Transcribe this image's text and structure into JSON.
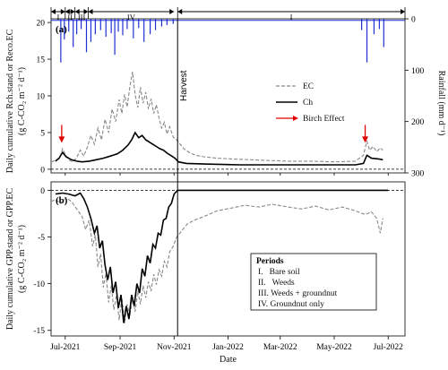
{
  "chart_data": [
    {
      "panel": "(a)",
      "type": "line",
      "ylabel_left": "Daily cumulative Rch.stand or Reco.EC",
      "ylabel_units": "(g C-CO₂ m⁻² d⁻¹)",
      "ylabel_right": "Rainfall (mm d⁻¹)",
      "ylim": [
        -0.5,
        20.5
      ],
      "yticks": [
        0,
        5,
        10,
        15,
        20
      ],
      "y2lim": [
        300,
        0
      ],
      "y2ticks": [
        0,
        100,
        200,
        300
      ],
      "xlim": [
        "2021-06-15",
        "2022-07-20"
      ],
      "annotation_harvest": "Harvest",
      "annotation_harvest_date": "2021-11-05",
      "periods": [
        {
          "label": "I",
          "start": "2021-06-15",
          "end": "2021-07-01"
        },
        {
          "label": "II",
          "start": "2021-07-01",
          "end": "2021-07-12"
        },
        {
          "label": "III",
          "start": "2021-07-12",
          "end": "2021-07-27"
        },
        {
          "label": "IV",
          "start": "2021-07-27",
          "end": "2021-11-01"
        },
        {
          "label": "I",
          "start": "2021-11-05",
          "end": "2022-07-20"
        }
      ],
      "birch_arrows": [
        "2021-06-27",
        "2022-06-05"
      ],
      "legend": {
        "ec": "EC",
        "ch": "Ch",
        "birch": "Birch Effect"
      },
      "series": [
        {
          "name": "EC",
          "style": "dashed",
          "color": "#888888",
          "points": [
            [
              "2021-06-15",
              1.0
            ],
            [
              "2021-06-20",
              1.2
            ],
            [
              "2021-06-25",
              1.6
            ],
            [
              "2021-06-28",
              2.8
            ],
            [
              "2021-07-02",
              1.8
            ],
            [
              "2021-07-06",
              1.2
            ],
            [
              "2021-07-10",
              1.0
            ],
            [
              "2021-07-14",
              1.6
            ],
            [
              "2021-07-18",
              2.6
            ],
            [
              "2021-07-22",
              1.8
            ],
            [
              "2021-07-26",
              3.0
            ],
            [
              "2021-07-30",
              4.6
            ],
            [
              "2021-08-03",
              3.4
            ],
            [
              "2021-08-07",
              5.6
            ],
            [
              "2021-08-11",
              4.0
            ],
            [
              "2021-08-15",
              6.8
            ],
            [
              "2021-08-19",
              5.0
            ],
            [
              "2021-08-23",
              8.2
            ],
            [
              "2021-08-27",
              6.5
            ],
            [
              "2021-08-31",
              9.5
            ],
            [
              "2021-09-03",
              7.6
            ],
            [
              "2021-09-06",
              10.2
            ],
            [
              "2021-09-09",
              8.5
            ],
            [
              "2021-09-12",
              11.2
            ],
            [
              "2021-09-15",
              13.3
            ],
            [
              "2021-09-18",
              10.2
            ],
            [
              "2021-09-21",
              8.4
            ],
            [
              "2021-09-24",
              11.2
            ],
            [
              "2021-09-27",
              9.0
            ],
            [
              "2021-09-30",
              10.5
            ],
            [
              "2021-10-03",
              8.2
            ],
            [
              "2021-10-06",
              9.6
            ],
            [
              "2021-10-09",
              7.6
            ],
            [
              "2021-10-12",
              8.8
            ],
            [
              "2021-10-15",
              7.0
            ],
            [
              "2021-10-18",
              5.6
            ],
            [
              "2021-10-21",
              6.4
            ],
            [
              "2021-10-24",
              4.8
            ],
            [
              "2021-10-27",
              5.8
            ],
            [
              "2021-10-31",
              4.4
            ],
            [
              "2021-11-04",
              4.0
            ],
            [
              "2021-11-08",
              3.4
            ],
            [
              "2021-11-12",
              2.8
            ],
            [
              "2021-11-18",
              2.3
            ],
            [
              "2021-11-25",
              1.9
            ],
            [
              "2021-12-05",
              1.7
            ],
            [
              "2021-12-20",
              1.5
            ],
            [
              "2022-01-05",
              1.4
            ],
            [
              "2022-01-25",
              1.3
            ],
            [
              "2022-02-15",
              1.2
            ],
            [
              "2022-03-10",
              1.1
            ],
            [
              "2022-04-05",
              1.1
            ],
            [
              "2022-05-01",
              1.0
            ],
            [
              "2022-05-25",
              1.1
            ],
            [
              "2022-06-03",
              1.9
            ],
            [
              "2022-06-07",
              3.8
            ],
            [
              "2022-06-10",
              2.6
            ],
            [
              "2022-06-14",
              3.1
            ],
            [
              "2022-06-18",
              2.4
            ],
            [
              "2022-06-22",
              2.9
            ],
            [
              "2022-06-25",
              2.6
            ]
          ]
        },
        {
          "name": "Ch",
          "style": "solid",
          "color": "#000000",
          "points": [
            [
              "2021-06-20",
              1.1
            ],
            [
              "2021-06-24",
              1.5
            ],
            [
              "2021-06-28",
              2.3
            ],
            [
              "2021-07-02",
              1.7
            ],
            [
              "2021-07-08",
              1.3
            ],
            [
              "2021-07-14",
              1.1
            ],
            [
              "2021-07-20",
              1.0
            ],
            [
              "2021-07-28",
              1.1
            ],
            [
              "2021-08-05",
              1.3
            ],
            [
              "2021-08-13",
              1.5
            ],
            [
              "2021-08-21",
              1.8
            ],
            [
              "2021-08-29",
              2.1
            ],
            [
              "2021-09-04",
              2.6
            ],
            [
              "2021-09-10",
              3.3
            ],
            [
              "2021-09-14",
              4.0
            ],
            [
              "2021-09-18",
              5.0
            ],
            [
              "2021-09-22",
              4.3
            ],
            [
              "2021-09-26",
              4.6
            ],
            [
              "2021-09-30",
              4.0
            ],
            [
              "2021-10-04",
              3.7
            ],
            [
              "2021-10-08",
              3.4
            ],
            [
              "2021-10-12",
              3.1
            ],
            [
              "2021-10-16",
              2.8
            ],
            [
              "2021-10-20",
              2.6
            ],
            [
              "2021-10-24",
              2.2
            ],
            [
              "2021-10-28",
              1.9
            ],
            [
              "2021-11-02",
              1.5
            ],
            [
              "2021-11-06",
              1.0
            ],
            [
              "2021-11-15",
              0.8
            ],
            [
              "2021-12-10",
              0.7
            ],
            [
              "2022-01-15",
              0.6
            ],
            [
              "2022-03-01",
              0.6
            ],
            [
              "2022-04-20",
              0.6
            ],
            [
              "2022-05-25",
              0.6
            ],
            [
              "2022-06-03",
              0.8
            ],
            [
              "2022-06-07",
              1.9
            ],
            [
              "2022-06-12",
              1.5
            ],
            [
              "2022-06-20",
              1.4
            ],
            [
              "2022-06-25",
              1.3
            ]
          ]
        }
      ]
    },
    {
      "panel": "(b)",
      "type": "line",
      "ylabel_left": "Daily cumulative GPP.stand or GPP.EC",
      "ylabel_units": "(g C-CO₂ m⁻² d⁻¹)",
      "ylim": [
        -15.6,
        0.9
      ],
      "yticks": [
        0,
        -5,
        -10,
        -15
      ],
      "xlabel": "Date",
      "xticks": [
        "Jul-2021",
        "Sep-2021",
        "Nov-2021",
        "Jan-2022",
        "Mar-2022",
        "May-2022",
        "Jul-2022"
      ],
      "xtick_dates": [
        "2021-07-01",
        "2021-09-01",
        "2021-11-01",
        "2022-01-01",
        "2022-03-01",
        "2022-05-01",
        "2022-07-01"
      ],
      "periods_box": {
        "title": "Periods",
        "items": [
          "I.   Bare soil",
          "II.   Weeds",
          "III. Weeds + groundnut",
          "IV. Groundnut only"
        ]
      },
      "series": [
        {
          "name": "EC",
          "style": "dashed",
          "color": "#888888",
          "points": [
            [
              "2021-06-15",
              -1.2
            ],
            [
              "2021-06-20",
              -1.0
            ],
            [
              "2021-06-26",
              -1.4
            ],
            [
              "2021-07-02",
              -0.8
            ],
            [
              "2021-07-08",
              -1.2
            ],
            [
              "2021-07-14",
              -2.0
            ],
            [
              "2021-07-20",
              -2.8
            ],
            [
              "2021-07-24",
              -4.2
            ],
            [
              "2021-07-28",
              -3.2
            ],
            [
              "2021-08-01",
              -6.0
            ],
            [
              "2021-08-04",
              -4.8
            ],
            [
              "2021-08-07",
              -8.2
            ],
            [
              "2021-08-10",
              -6.8
            ],
            [
              "2021-08-13",
              -10.4
            ],
            [
              "2021-08-16",
              -8.9
            ],
            [
              "2021-08-19",
              -12.0
            ],
            [
              "2021-08-22",
              -10.2
            ],
            [
              "2021-08-25",
              -12.8
            ],
            [
              "2021-08-28",
              -11.2
            ],
            [
              "2021-08-31",
              -13.9
            ],
            [
              "2021-09-03",
              -11.5
            ],
            [
              "2021-09-06",
              -14.3
            ],
            [
              "2021-09-09",
              -12.2
            ],
            [
              "2021-09-12",
              -13.5
            ],
            [
              "2021-09-15",
              -11.4
            ],
            [
              "2021-09-18",
              -13.0
            ],
            [
              "2021-09-21",
              -10.8
            ],
            [
              "2021-09-24",
              -12.2
            ],
            [
              "2021-09-27",
              -10.2
            ],
            [
              "2021-09-30",
              -11.5
            ],
            [
              "2021-10-03",
              -9.8
            ],
            [
              "2021-10-06",
              -10.8
            ],
            [
              "2021-10-09",
              -9.0
            ],
            [
              "2021-10-12",
              -10.1
            ],
            [
              "2021-10-15",
              -8.5
            ],
            [
              "2021-10-18",
              -9.2
            ],
            [
              "2021-10-21",
              -7.6
            ],
            [
              "2021-10-24",
              -8.2
            ],
            [
              "2021-10-27",
              -6.6
            ],
            [
              "2021-10-31",
              -6.0
            ],
            [
              "2021-11-04",
              -5.0
            ],
            [
              "2021-11-10",
              -4.3
            ],
            [
              "2021-11-16",
              -3.6
            ],
            [
              "2021-11-24",
              -3.2
            ],
            [
              "2021-12-05",
              -2.8
            ],
            [
              "2021-12-20",
              -2.2
            ],
            [
              "2022-01-05",
              -1.9
            ],
            [
              "2022-01-20",
              -1.6
            ],
            [
              "2022-02-05",
              -1.8
            ],
            [
              "2022-02-20",
              -1.5
            ],
            [
              "2022-03-10",
              -1.8
            ],
            [
              "2022-03-25",
              -2.0
            ],
            [
              "2022-04-10",
              -1.7
            ],
            [
              "2022-04-25",
              -2.1
            ],
            [
              "2022-05-10",
              -1.8
            ],
            [
              "2022-05-25",
              -2.2
            ],
            [
              "2022-06-05",
              -2.6
            ],
            [
              "2022-06-12",
              -2.3
            ],
            [
              "2022-06-18",
              -3.0
            ],
            [
              "2022-06-22",
              -4.6
            ],
            [
              "2022-06-25",
              -3.0
            ]
          ]
        },
        {
          "name": "Ch",
          "style": "solid",
          "color": "#000000",
          "points": [
            [
              "2021-06-20",
              -0.4
            ],
            [
              "2021-06-28",
              -0.3
            ],
            [
              "2021-07-05",
              -0.4
            ],
            [
              "2021-07-12",
              -0.6
            ],
            [
              "2021-07-18",
              -0.3
            ],
            [
              "2021-07-22",
              -0.9
            ],
            [
              "2021-07-26",
              -1.8
            ],
            [
              "2021-07-30",
              -3.0
            ],
            [
              "2021-08-03",
              -4.6
            ],
            [
              "2021-08-06",
              -3.8
            ],
            [
              "2021-08-09",
              -6.2
            ],
            [
              "2021-08-12",
              -5.4
            ],
            [
              "2021-08-15",
              -8.0
            ],
            [
              "2021-08-18",
              -9.6
            ],
            [
              "2021-08-21",
              -8.2
            ],
            [
              "2021-08-24",
              -11.0
            ],
            [
              "2021-08-27",
              -9.8
            ],
            [
              "2021-08-30",
              -12.6
            ],
            [
              "2021-09-02",
              -11.2
            ],
            [
              "2021-09-05",
              -14.2
            ],
            [
              "2021-09-08",
              -12.4
            ],
            [
              "2021-09-11",
              -13.8
            ],
            [
              "2021-09-14",
              -11.2
            ],
            [
              "2021-09-17",
              -12.4
            ],
            [
              "2021-09-20",
              -10.0
            ],
            [
              "2021-09-23",
              -11.0
            ],
            [
              "2021-09-26",
              -8.4
            ],
            [
              "2021-09-29",
              -9.2
            ],
            [
              "2021-10-02",
              -7.0
            ],
            [
              "2021-10-05",
              -7.8
            ],
            [
              "2021-10-08",
              -5.8
            ],
            [
              "2021-10-11",
              -6.2
            ],
            [
              "2021-10-14",
              -4.6
            ],
            [
              "2021-10-17",
              -4.8
            ],
            [
              "2021-10-20",
              -3.2
            ],
            [
              "2021-10-23",
              -3.0
            ],
            [
              "2021-10-26",
              -1.8
            ],
            [
              "2021-10-29",
              -1.4
            ],
            [
              "2021-11-01",
              -0.4
            ],
            [
              "2021-11-05",
              0.0
            ],
            [
              "2022-07-01",
              0.0
            ]
          ]
        }
      ]
    }
  ],
  "rainfall_events": [
    [
      "2021-06-26",
      85
    ],
    [
      "2021-06-30",
      40
    ],
    [
      "2021-07-05",
      25
    ],
    [
      "2021-07-10",
      55
    ],
    [
      "2021-07-14",
      30
    ],
    [
      "2021-07-19",
      20
    ],
    [
      "2021-07-25",
      65
    ],
    [
      "2021-07-30",
      45
    ],
    [
      "2021-08-04",
      30
    ],
    [
      "2021-08-10",
      22
    ],
    [
      "2021-08-16",
      35
    ],
    [
      "2021-08-22",
      28
    ],
    [
      "2021-08-26",
      70
    ],
    [
      "2021-08-30",
      25
    ],
    [
      "2021-09-04",
      32
    ],
    [
      "2021-09-09",
      20
    ],
    [
      "2021-09-16",
      38
    ],
    [
      "2021-09-22",
      18
    ],
    [
      "2021-09-28",
      45
    ],
    [
      "2021-10-05",
      30
    ],
    [
      "2021-10-11",
      22
    ],
    [
      "2021-10-18",
      15
    ],
    [
      "2021-10-24",
      12
    ],
    [
      "2021-10-31",
      10
    ],
    [
      "2022-06-01",
      22
    ],
    [
      "2022-06-07",
      85
    ],
    [
      "2022-06-15",
      30
    ],
    [
      "2022-06-21",
      20
    ],
    [
      "2022-06-26",
      55
    ]
  ]
}
